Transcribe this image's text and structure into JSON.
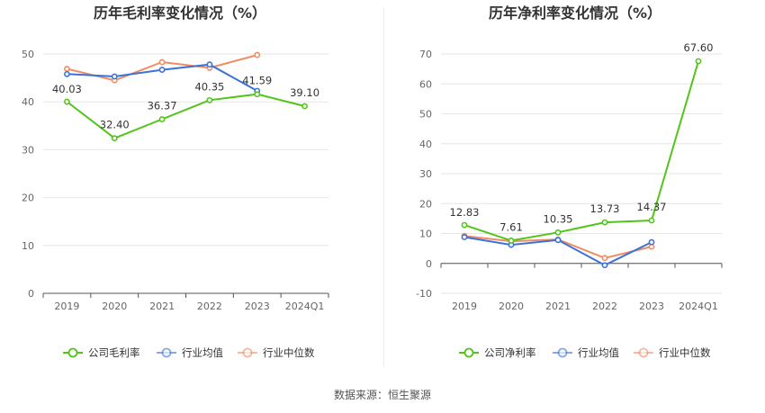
{
  "footer": {
    "source_label": "数据来源：恒生聚源"
  },
  "chart_data": [
    {
      "type": "line",
      "title": "历年毛利率变化情况（%）",
      "categories": [
        "2019",
        "2020",
        "2021",
        "2022",
        "2023",
        "2024Q1"
      ],
      "ylim": [
        0,
        50
      ],
      "yticks": [
        0,
        10,
        20,
        30,
        40,
        50
      ],
      "grid": true,
      "legend_position": "bottom",
      "series": [
        {
          "name": "公司毛利率",
          "color": "#52c41a",
          "values": [
            40.03,
            32.4,
            36.37,
            40.35,
            41.59,
            39.1
          ],
          "labels": [
            "40.03",
            "32.40",
            "36.37",
            "40.35",
            "41.59",
            "39.10"
          ]
        },
        {
          "name": "行业均值",
          "color": "#3b73d6",
          "values": [
            45.8,
            45.3,
            46.7,
            47.8,
            42.3,
            null
          ]
        },
        {
          "name": "行业中位数",
          "color": "#f08c64",
          "values": [
            46.9,
            44.5,
            48.3,
            47.1,
            49.8,
            null
          ]
        }
      ]
    },
    {
      "type": "line",
      "title": "历年净利率变化情况（%）",
      "categories": [
        "2019",
        "2020",
        "2021",
        "2022",
        "2023",
        "2024Q1"
      ],
      "ylim": [
        -10,
        70
      ],
      "yticks": [
        -10,
        0,
        10,
        20,
        30,
        40,
        50,
        60,
        70
      ],
      "grid": true,
      "legend_position": "bottom",
      "series": [
        {
          "name": "公司净利率",
          "color": "#52c41a",
          "values": [
            12.83,
            7.61,
            10.35,
            13.73,
            14.37,
            67.6
          ],
          "labels": [
            "12.83",
            "7.61",
            "10.35",
            "13.73",
            "14.37",
            "67.60"
          ]
        },
        {
          "name": "行业均值",
          "color": "#3b73d6",
          "values": [
            8.8,
            6.2,
            7.8,
            -0.6,
            7.1,
            null
          ]
        },
        {
          "name": "行业中位数",
          "color": "#f08c64",
          "values": [
            9.2,
            7.4,
            8.0,
            1.8,
            5.6,
            null
          ]
        }
      ]
    }
  ]
}
